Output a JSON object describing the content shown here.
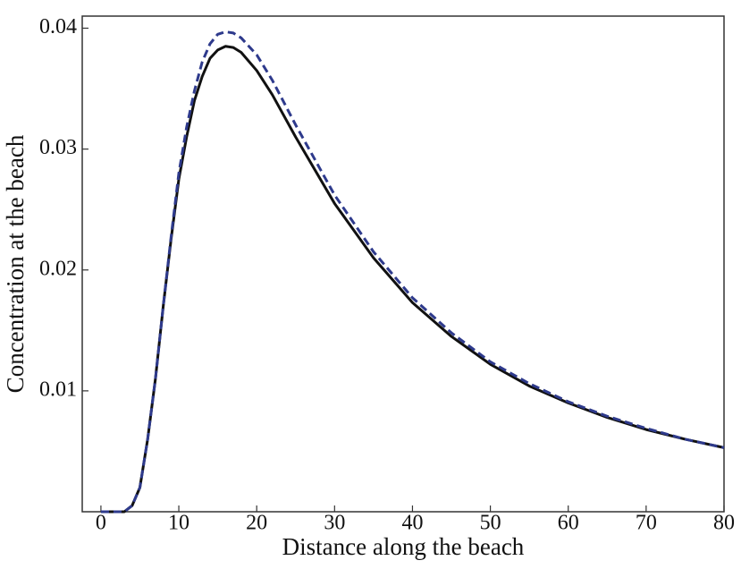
{
  "chart_data": {
    "type": "line",
    "x_label": "Distance along the beach",
    "y_label": "Concentration at the beach",
    "x": [
      0,
      2,
      3,
      4,
      5,
      6,
      7,
      8,
      9,
      10,
      11,
      12,
      13,
      14,
      15,
      16,
      17,
      18,
      20,
      22,
      25,
      30,
      35,
      40,
      45,
      50,
      55,
      60,
      65,
      70,
      75,
      80
    ],
    "series": [
      {
        "color": "#111111",
        "dash": false,
        "values": [
          0,
          0,
          0,
          0.0005,
          0.002,
          0.006,
          0.011,
          0.017,
          0.0225,
          0.0275,
          0.031,
          0.034,
          0.036,
          0.0375,
          0.0382,
          0.0385,
          0.0384,
          0.038,
          0.0365,
          0.0345,
          0.031,
          0.0255,
          0.021,
          0.0173,
          0.0145,
          0.0122,
          0.0104,
          0.009,
          0.0078,
          0.0068,
          0.006,
          0.0053
        ]
      },
      {
        "color": "#2e3a8c",
        "dash": true,
        "values": [
          0,
          0,
          0,
          0.0005,
          0.002,
          0.006,
          0.011,
          0.017,
          0.0227,
          0.028,
          0.0318,
          0.0348,
          0.0372,
          0.0387,
          0.0395,
          0.0397,
          0.0396,
          0.0392,
          0.0378,
          0.0357,
          0.032,
          0.0262,
          0.0215,
          0.0177,
          0.0148,
          0.0124,
          0.0106,
          0.0091,
          0.0079,
          0.0069,
          0.006,
          0.0053
        ]
      }
    ],
    "xlim": [
      -2.4,
      80
    ],
    "xticks": [
      0,
      10,
      20,
      30,
      40,
      50,
      60,
      70,
      80
    ],
    "ylim": [
      0,
      0.041
    ],
    "yticks": [
      0.01,
      0.02,
      0.03,
      0.04
    ]
  }
}
